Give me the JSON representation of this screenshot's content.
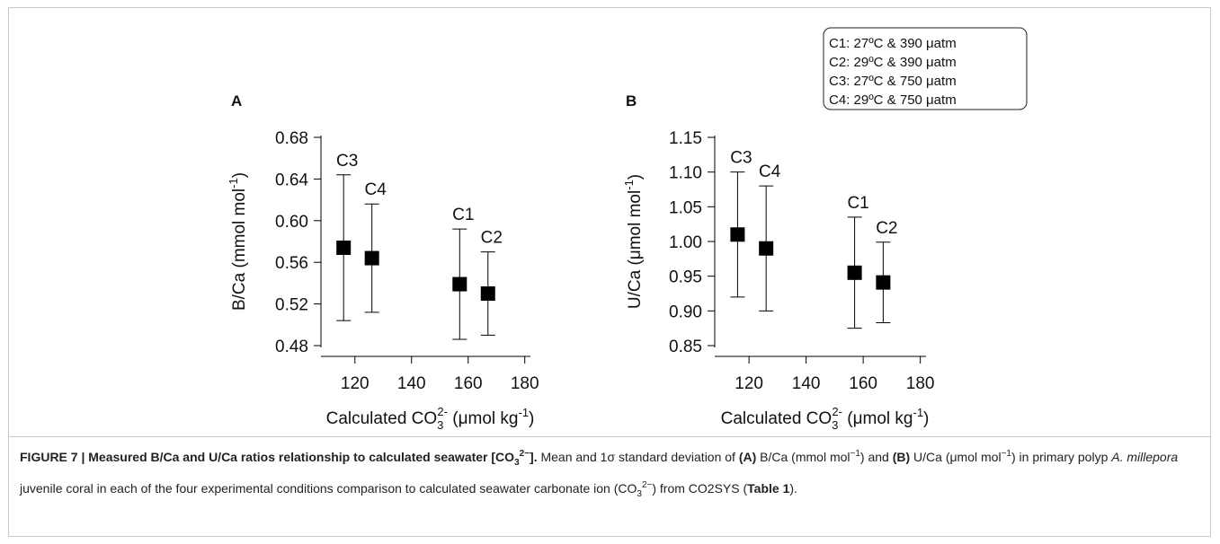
{
  "chart_data": [
    {
      "type": "scatter",
      "panel_label": "A",
      "categories": [
        "C3",
        "C4",
        "C1",
        "C2"
      ],
      "x": [
        116,
        126,
        157,
        167
      ],
      "series": [
        {
          "color": "#000000",
          "values": [
            0.574,
            0.564,
            0.539,
            0.53
          ],
          "errors": [
            0.07,
            0.052,
            0.053,
            0.04
          ]
        }
      ],
      "xlim": [
        108,
        182
      ],
      "xticks": [
        120,
        140,
        160,
        180
      ],
      "ylim": [
        0.48,
        0.68
      ],
      "yticks": [
        0.48,
        0.52,
        0.56,
        {
          "value": 0.6,
          "label": "0.60"
        },
        0.64,
        0.68
      ],
      "xlabel": [
        "Calculated CO",
        "3",
        "2-",
        " (μmol kg",
        "-1",
        ")"
      ],
      "ylabel": [
        "B/Ca (mmol mol",
        "-1",
        ")"
      ]
    },
    {
      "type": "scatter",
      "panel_label": "B",
      "categories": [
        "C3",
        "C4",
        "C1",
        "C2"
      ],
      "x": [
        116,
        126,
        157,
        167
      ],
      "series": [
        {
          "color": "#000000",
          "values": [
            1.01,
            0.99,
            0.955,
            0.941
          ],
          "errors": [
            0.09,
            0.09,
            0.08,
            0.058
          ]
        }
      ],
      "xlim": [
        108,
        182
      ],
      "xticks": [
        120,
        140,
        160,
        180
      ],
      "ylim": [
        0.85,
        1.15
      ],
      "yticks": [
        0.85,
        {
          "value": 0.9,
          "label": "0.90"
        },
        0.95,
        {
          "value": 1,
          "label": "1.00"
        },
        1.05,
        {
          "value": 1.1,
          "label": "1.10"
        },
        1.15
      ],
      "xlabel": [
        "Calculated CO",
        "3",
        "2-",
        " (μmol kg",
        "-1",
        ")"
      ],
      "ylabel": [
        "U/Ca (μmol mol",
        "-1",
        ")"
      ],
      "legend_box": [
        "C1: 27ºC & 390 μatm",
        "C2: 29ºC & 390 μatm",
        "C3: 27ºC & 750 μatm",
        "C4: 29ºC & 750 μatm"
      ]
    }
  ],
  "caption": [
    "FIGURE 7 | Measured B/Ca and U/Ca ratios relationship to calculated seawater [CO",
    "3",
    "2−",
    "].",
    " Mean and 1σ standard deviation of ",
    "(A)",
    " B/Ca (mmol mol",
    "−1",
    ") and ",
    "(B)",
    " U/Ca (μmol mol",
    "−1",
    ") in primary polyp ",
    "A. millepora",
    " juvenile coral in each of the four experimental conditions comparison to calculated seawater carbonate ion (CO",
    "3",
    "2−",
    ") from CO2SYS (",
    "Table 1",
    ")."
  ]
}
